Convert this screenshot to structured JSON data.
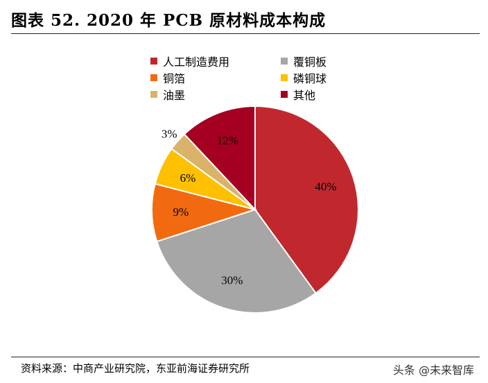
{
  "header": {
    "title": "图表 52. 2020 年 PCB 原材料成本构成"
  },
  "footer": {
    "source": "资料来源：中商产业研究院，东亚前海证券研究所",
    "watermark": "头条 @未来智库"
  },
  "chart_data": {
    "type": "pie",
    "title": "图表 52. 2020 年 PCB 原材料成本构成",
    "legend_position": "top",
    "slices": [
      {
        "label": "人工制造费用",
        "value": 40,
        "display": "40%",
        "color": "#C0282E"
      },
      {
        "label": "覆铜板",
        "value": 30,
        "display": "30%",
        "color": "#A6A6A6"
      },
      {
        "label": "铜箔",
        "value": 9,
        "display": "9%",
        "color": "#F26A0F"
      },
      {
        "label": "磷铜球",
        "value": 6,
        "display": "6%",
        "color": "#FFC000"
      },
      {
        "label": "油墨",
        "value": 3,
        "display": "3%",
        "color": "#D9B36A"
      },
      {
        "label": "其他",
        "value": 12,
        "display": "12%",
        "color": "#A50021"
      }
    ]
  }
}
